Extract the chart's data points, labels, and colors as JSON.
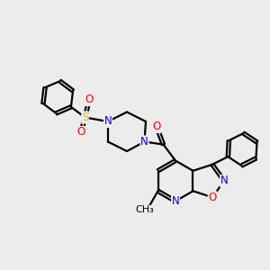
{
  "bg_color": "#ececec",
  "bond_color": "#000000",
  "bond_width": 1.6,
  "atom_colors": {
    "N": "#0000ff",
    "O": "#ff0000",
    "S": "#cccc00",
    "C": "#000000"
  },
  "font_size": 8.5,
  "xlim": [
    0,
    10
  ],
  "ylim": [
    0,
    10
  ]
}
